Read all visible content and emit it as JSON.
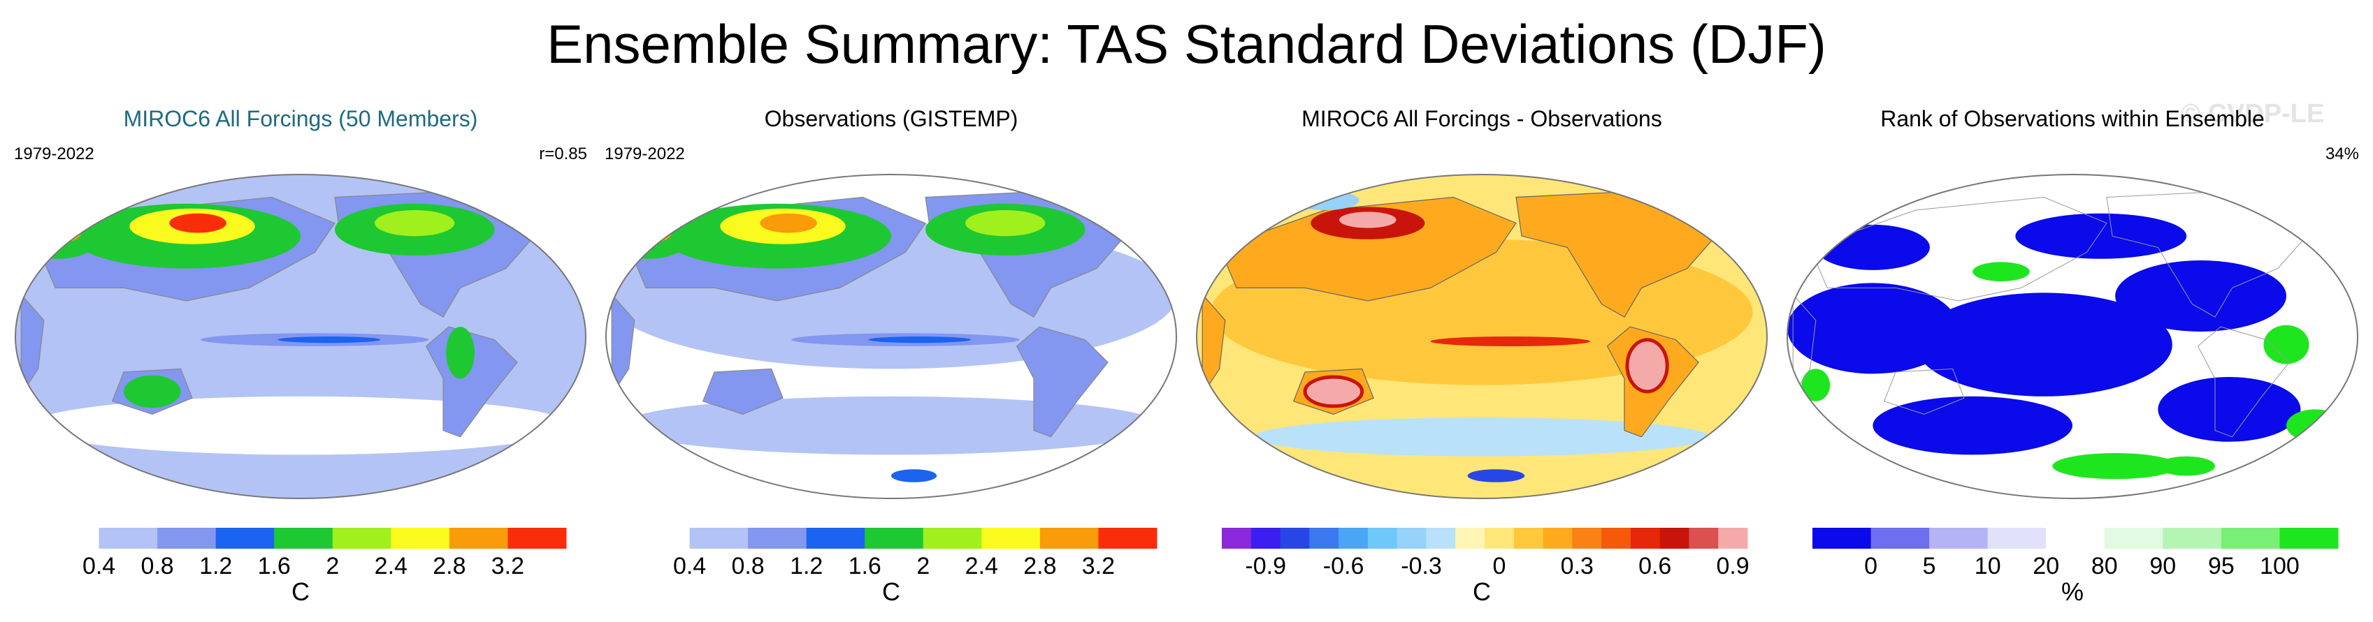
{
  "title": "Ensemble Summary: TAS Standard Deviations (DJF)",
  "watermark": "© CVDP-LE",
  "chart_data": [
    {
      "type": "heatmap",
      "title": "MIROC6 All Forcings (50 Members)",
      "title_color": "#1e6a82",
      "period": "1979-2022",
      "stat": "r=0.85",
      "colorbar": {
        "unit": "C",
        "colors": [
          "#ffffff",
          "#b4c3f5",
          "#8396f0",
          "#1a64f0",
          "#1ec832",
          "#a0f01e",
          "#fafa1e",
          "#fa9b0a",
          "#fa2d0a"
        ],
        "ticks": [
          "0.4",
          "0.8",
          "1.2",
          "1.6",
          "2",
          "2.4",
          "2.8",
          "3.2"
        ]
      }
    },
    {
      "type": "heatmap",
      "title": "Observations (GISTEMP)",
      "title_color": "#000000",
      "period": "1979-2022",
      "stat": "",
      "colorbar": {
        "unit": "C",
        "colors": [
          "#ffffff",
          "#b4c3f5",
          "#8396f0",
          "#1a64f0",
          "#1ec832",
          "#a0f01e",
          "#fafa1e",
          "#fa9b0a",
          "#fa2d0a"
        ],
        "ticks": [
          "0.4",
          "0.8",
          "1.2",
          "1.6",
          "2",
          "2.4",
          "2.8",
          "3.2"
        ]
      }
    },
    {
      "type": "heatmap",
      "title": "MIROC6 All Forcings - Observations",
      "title_color": "#000000",
      "period": "",
      "stat": "",
      "colorbar": {
        "unit": "C",
        "colors": [
          "#8c28dc",
          "#3c1ef0",
          "#2846e6",
          "#3c78f0",
          "#4ba5f5",
          "#6ec8fa",
          "#96d2fa",
          "#b9e1fa",
          "#fff5b4",
          "#ffe678",
          "#ffc83c",
          "#ffaa1e",
          "#fa8214",
          "#f55a0a",
          "#e6280a",
          "#c8140a",
          "#dc5050",
          "#f5aaaa"
        ],
        "ticks": [
          "-0.9",
          "-0.6",
          "-0.3",
          "0",
          "0.3",
          "0.6",
          "0.9"
        ]
      }
    },
    {
      "type": "heatmap",
      "title": "Rank of Observations within Ensemble",
      "title_color": "#000000",
      "period": "",
      "stat": "34%",
      "colorbar": {
        "unit": "%",
        "colors": [
          "#0a0aeb",
          "#6e6ef0",
          "#b4b4f5",
          "#e1e1fa",
          "#ffffff",
          "#e1fae1",
          "#b4f5b4",
          "#78f078",
          "#1ee61e"
        ],
        "ticks": [
          "0",
          "5",
          "10",
          "20",
          "80",
          "90",
          "95",
          "100"
        ]
      }
    }
  ]
}
